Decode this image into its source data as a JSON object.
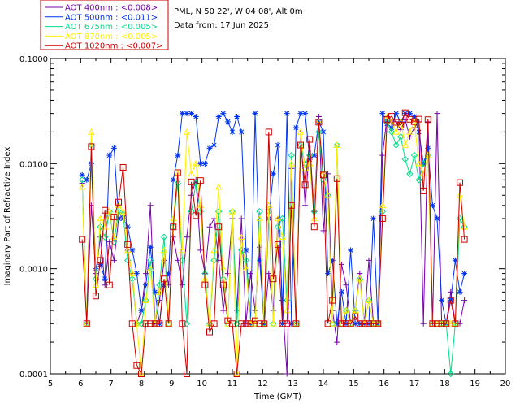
{
  "chart_data": {
    "type": "line",
    "title_lines": [
      "PML, N 50 22', W 04 08', Alt 0m",
      "Data from: 17 Jun 2025"
    ],
    "xlabel": "Time (GMT)",
    "ylabel": "Imaginary Part of Refractive Index",
    "xlim": [
      5,
      20
    ],
    "ylim": [
      0.0001,
      0.1
    ],
    "yscale": "log",
    "x_ticks": [
      "5",
      "6",
      "7",
      "8",
      "9",
      "10",
      "11",
      "12",
      "13",
      "14",
      "15",
      "16",
      "17",
      "18",
      "19",
      "20"
    ],
    "y_ticks": [
      "0.0001",
      "0.0010",
      "0.0100",
      "0.1000"
    ],
    "legend_position": "top-left (above plot)",
    "series": [
      {
        "name": "AOT  400nm : <0.008>",
        "color": "#7700aa",
        "marker": "plus",
        "x": [
          6.05,
          6.2,
          6.35,
          6.5,
          6.65,
          6.8,
          6.95,
          7.1,
          7.25,
          7.4,
          7.55,
          7.7,
          7.85,
          8.0,
          8.15,
          8.3,
          8.45,
          8.6,
          8.75,
          8.9,
          9.05,
          9.2,
          9.35,
          9.5,
          9.65,
          9.8,
          9.95,
          10.1,
          10.25,
          10.4,
          10.55,
          10.7,
          10.85,
          11.0,
          11.15,
          11.3,
          11.45,
          11.6,
          11.75,
          11.9,
          12.05,
          12.2,
          12.35,
          12.5,
          12.65,
          12.8,
          12.95,
          13.1,
          13.25,
          13.4,
          13.55,
          13.7,
          13.85,
          14.0,
          14.15,
          14.3,
          14.45,
          14.6,
          14.75,
          14.9,
          15.05,
          15.2,
          15.35,
          15.5,
          15.65,
          15.8,
          15.95,
          16.1,
          16.25,
          16.4,
          16.55,
          16.7,
          16.85,
          17.0,
          17.15,
          17.3,
          17.45,
          17.6,
          17.75,
          17.9,
          18.05,
          18.2,
          18.35,
          18.5,
          18.65
        ],
        "y": [
          0.0065,
          0.0003,
          0.004,
          0.0009,
          0.002,
          0.0007,
          0.0018,
          0.0012,
          0.003,
          0.0032,
          0.0015,
          0.0009,
          0.0003,
          0.0004,
          0.0009,
          0.004,
          0.0003,
          0.0005,
          0.0012,
          0.0007,
          0.002,
          0.0012,
          0.0007,
          0.002,
          0.005,
          0.007,
          0.0015,
          0.0009,
          0.0025,
          0.003,
          0.0012,
          0.0004,
          0.0009,
          0.003,
          0.0004,
          0.003,
          0.0003,
          0.0009,
          0.0004,
          0.0016,
          0.0003,
          0.0009,
          0.0004,
          0.003,
          0.0005,
          0.0001,
          0.009,
          0.0003,
          0.02,
          0.004,
          0.015,
          0.0035,
          0.028,
          0.0023,
          0.008,
          0.0004,
          0.0002,
          0.0011,
          0.0007,
          0.0003,
          0.0004,
          0.0009,
          0.0003,
          0.0012,
          0.0003,
          0.0003,
          0.012,
          0.028,
          0.025,
          0.025,
          0.021,
          0.026,
          0.018,
          0.022,
          0.025,
          0.0003,
          0.025,
          0.0003,
          0.03,
          0.0003,
          0.0003,
          0.0006,
          0.0003,
          0.0003,
          0.0005
        ]
      },
      {
        "name": "AOT  500nm : <0.011>",
        "color": "#0033ee",
        "marker": "star",
        "x": [
          6.05,
          6.2,
          6.35,
          6.5,
          6.65,
          6.8,
          6.95,
          7.1,
          7.25,
          7.4,
          7.55,
          7.7,
          7.85,
          8.0,
          8.15,
          8.3,
          8.45,
          8.6,
          8.75,
          8.9,
          9.05,
          9.2,
          9.35,
          9.5,
          9.65,
          9.8,
          9.95,
          10.1,
          10.25,
          10.4,
          10.55,
          10.7,
          10.85,
          11.0,
          11.15,
          11.3,
          11.45,
          11.6,
          11.75,
          11.9,
          12.05,
          12.2,
          12.35,
          12.5,
          12.65,
          12.8,
          12.95,
          13.1,
          13.25,
          13.4,
          13.55,
          13.7,
          13.85,
          14.0,
          14.15,
          14.3,
          14.45,
          14.6,
          14.75,
          14.9,
          15.05,
          15.2,
          15.35,
          15.5,
          15.65,
          15.8,
          15.95,
          16.1,
          16.25,
          16.4,
          16.55,
          16.7,
          16.85,
          17.0,
          17.15,
          17.3,
          17.45,
          17.6,
          17.75,
          17.9,
          18.05,
          18.2,
          18.35,
          18.5,
          18.65
        ],
        "y": [
          0.0078,
          0.007,
          0.01,
          0.001,
          0.0011,
          0.0008,
          0.012,
          0.014,
          0.003,
          0.003,
          0.0025,
          0.0015,
          0.0009,
          0.0004,
          0.0007,
          0.0016,
          0.0006,
          0.0003,
          0.0007,
          0.0009,
          0.007,
          0.012,
          0.03,
          0.03,
          0.03,
          0.028,
          0.01,
          0.01,
          0.014,
          0.015,
          0.028,
          0.03,
          0.025,
          0.02,
          0.028,
          0.02,
          0.0015,
          0.0003,
          0.03,
          0.0012,
          0.0003,
          0.003,
          0.008,
          0.015,
          0.0003,
          0.03,
          0.0003,
          0.022,
          0.03,
          0.03,
          0.011,
          0.012,
          0.025,
          0.02,
          0.0009,
          0.0012,
          0.0003,
          0.0006,
          0.0003,
          0.0015,
          0.0003,
          0.0003,
          0.0003,
          0.0003,
          0.003,
          0.0003,
          0.03,
          0.024,
          0.022,
          0.03,
          0.025,
          0.03,
          0.03,
          0.028,
          0.02,
          0.01,
          0.014,
          0.004,
          0.003,
          0.0005,
          0.0003,
          0.0005,
          0.0012,
          0.0006,
          0.0009
        ]
      },
      {
        "name": "AOT  675nm : <0.005>",
        "color": "#00dd88",
        "marker": "diamond",
        "x": [
          6.05,
          6.2,
          6.35,
          6.5,
          6.65,
          6.8,
          6.95,
          7.1,
          7.25,
          7.4,
          7.55,
          7.7,
          7.85,
          8.0,
          8.15,
          8.3,
          8.45,
          8.6,
          8.75,
          8.9,
          9.05,
          9.2,
          9.35,
          9.5,
          9.65,
          9.8,
          9.95,
          10.1,
          10.25,
          10.4,
          10.55,
          10.7,
          10.85,
          11.0,
          11.15,
          11.3,
          11.45,
          11.6,
          11.75,
          11.9,
          12.05,
          12.2,
          12.35,
          12.5,
          12.65,
          12.8,
          12.95,
          13.1,
          13.25,
          13.4,
          13.55,
          13.7,
          13.85,
          14.0,
          14.15,
          14.3,
          14.45,
          14.6,
          14.75,
          14.9,
          15.05,
          15.2,
          15.35,
          15.5,
          15.65,
          15.8,
          15.95,
          16.1,
          16.25,
          16.4,
          16.55,
          16.7,
          16.85,
          17.0,
          17.15,
          17.3,
          17.45,
          17.6,
          17.75,
          17.9,
          18.05,
          18.2,
          18.35,
          18.5,
          18.65
        ],
        "y": [
          0.007,
          0.0003,
          0.015,
          0.0008,
          0.0025,
          0.002,
          0.0035,
          0.0018,
          0.0035,
          0.0033,
          0.0012,
          0.0008,
          0.0003,
          0.0003,
          0.0005,
          0.0012,
          0.0003,
          0.0007,
          0.002,
          0.0003,
          0.0025,
          0.0065,
          0.0012,
          0.0003,
          0.0035,
          0.0065,
          0.0035,
          0.0009,
          0.0003,
          0.0012,
          0.0035,
          0.0008,
          0.0003,
          0.0035,
          0.0003,
          0.0015,
          0.0012,
          0.0003,
          0.0003,
          0.0035,
          0.0003,
          0.0035,
          0.0003,
          0.0025,
          0.003,
          0.0005,
          0.012,
          0.0003,
          0.015,
          0.01,
          0.012,
          0.0035,
          0.02,
          0.007,
          0.005,
          0.0003,
          0.015,
          0.0003,
          0.0004,
          0.0003,
          0.0004,
          0.0008,
          0.0003,
          0.0005,
          0.0003,
          0.0003,
          0.0035,
          0.025,
          0.02,
          0.015,
          0.018,
          0.011,
          0.008,
          0.012,
          0.007,
          0.01,
          0.012,
          0.0003,
          0.0003,
          0.0003,
          0.0003,
          0.0001,
          0.0003,
          0.003,
          0.0025
        ]
      },
      {
        "name": "AOT  870nm : <0.005>",
        "color": "#ffee00",
        "marker": "triangle",
        "x": [
          6.05,
          6.2,
          6.35,
          6.5,
          6.65,
          6.8,
          6.95,
          7.1,
          7.25,
          7.4,
          7.55,
          7.7,
          7.85,
          8.0,
          8.15,
          8.3,
          8.45,
          8.6,
          8.75,
          8.9,
          9.05,
          9.2,
          9.35,
          9.5,
          9.65,
          9.8,
          9.95,
          10.1,
          10.25,
          10.4,
          10.55,
          10.7,
          10.85,
          11.0,
          11.15,
          11.3,
          11.45,
          11.6,
          11.75,
          11.9,
          12.05,
          12.2,
          12.35,
          12.5,
          12.65,
          12.8,
          12.95,
          13.1,
          13.25,
          13.4,
          13.55,
          13.7,
          13.85,
          14.0,
          14.15,
          14.3,
          14.45,
          14.6,
          14.75,
          14.9,
          15.05,
          15.2,
          15.35,
          15.5,
          15.65,
          15.8,
          15.95,
          16.1,
          16.25,
          16.4,
          16.55,
          16.7,
          16.85,
          17.0,
          17.15,
          17.3,
          17.45,
          17.6,
          17.75,
          17.9,
          18.05,
          18.2,
          18.35,
          18.5,
          18.65
        ],
        "y": [
          0.006,
          0.0003,
          0.02,
          0.0007,
          0.003,
          0.0025,
          0.0035,
          0.002,
          0.004,
          0.0035,
          0.0015,
          0.0009,
          0.0003,
          0.0001,
          0.0005,
          0.001,
          0.0003,
          0.0006,
          0.0015,
          0.0003,
          0.003,
          0.008,
          0.0015,
          0.02,
          0.008,
          0.01,
          0.004,
          0.0008,
          0.0003,
          0.0015,
          0.006,
          0.001,
          0.0003,
          0.0035,
          0.0001,
          0.002,
          0.001,
          0.0003,
          0.0003,
          0.003,
          0.0003,
          0.004,
          0.0003,
          0.003,
          0.002,
          0.0004,
          0.01,
          0.0003,
          0.02,
          0.009,
          0.01,
          0.003,
          0.025,
          0.008,
          0.005,
          0.0003,
          0.015,
          0.0003,
          0.0004,
          0.0003,
          0.0004,
          0.0008,
          0.0003,
          0.0005,
          0.0003,
          0.0003,
          0.004,
          0.028,
          0.025,
          0.02,
          0.025,
          0.015,
          0.02,
          0.025,
          0.01,
          0.008,
          0.012,
          0.0003,
          0.0003,
          0.0003,
          0.0003,
          0.0003,
          0.0003,
          0.005,
          0.0025
        ]
      },
      {
        "name": "AOT 1020nm : <0.007>",
        "color": "#cc0000",
        "marker": "square",
        "x": [
          6.05,
          6.2,
          6.35,
          6.5,
          6.65,
          6.8,
          6.95,
          7.1,
          7.25,
          7.4,
          7.55,
          7.7,
          7.85,
          8.0,
          8.15,
          8.3,
          8.45,
          8.6,
          8.75,
          8.9,
          9.05,
          9.2,
          9.35,
          9.5,
          9.65,
          9.8,
          9.95,
          10.1,
          10.25,
          10.4,
          10.55,
          10.7,
          10.85,
          11.0,
          11.15,
          11.3,
          11.45,
          11.6,
          11.75,
          11.9,
          12.05,
          12.2,
          12.35,
          12.5,
          12.65,
          12.8,
          12.95,
          13.1,
          13.25,
          13.4,
          13.55,
          13.7,
          13.85,
          14.0,
          14.15,
          14.3,
          14.45,
          14.6,
          14.75,
          14.9,
          15.05,
          15.2,
          15.35,
          15.5,
          15.65,
          15.8,
          15.95,
          16.1,
          16.25,
          16.4,
          16.55,
          16.7,
          16.85,
          17.0,
          17.15,
          17.3,
          17.45,
          17.6,
          17.75,
          17.9,
          18.05,
          18.2,
          18.35,
          18.5,
          18.65
        ],
        "y": [
          0.0019,
          0.0003,
          0.0145,
          0.00055,
          0.0012,
          0.0036,
          0.0007,
          0.0031,
          0.0043,
          0.0092,
          0.0017,
          0.0003,
          0.00012,
          0.0001,
          0.0003,
          0.0003,
          0.0003,
          0.0003,
          0.0008,
          0.0003,
          0.0025,
          0.0082,
          0.0003,
          0.0001,
          0.0067,
          0.0032,
          0.0069,
          0.0007,
          0.00025,
          0.0003,
          0.0025,
          0.0007,
          0.00032,
          0.0003,
          0.0001,
          0.0003,
          0.0003,
          0.0003,
          0.00032,
          0.0003,
          0.0003,
          0.02,
          0.0008,
          0.0017,
          0.0003,
          0.0003,
          0.004,
          0.0003,
          0.015,
          0.0063,
          0.017,
          0.0025,
          0.0248,
          0.0078,
          0.0003,
          0.0005,
          0.0072,
          0.0003,
          0.0003,
          0.0003,
          0.00035,
          0.0003,
          0.0003,
          0.0003,
          0.0003,
          0.0003,
          0.003,
          0.0262,
          0.0282,
          0.0247,
          0.0232,
          0.0305,
          0.0264,
          0.0251,
          0.0265,
          0.0055,
          0.0262,
          0.0003,
          0.0003,
          0.0003,
          0.0003,
          0.0005,
          0.0003,
          0.0066,
          0.0019
        ]
      }
    ]
  }
}
